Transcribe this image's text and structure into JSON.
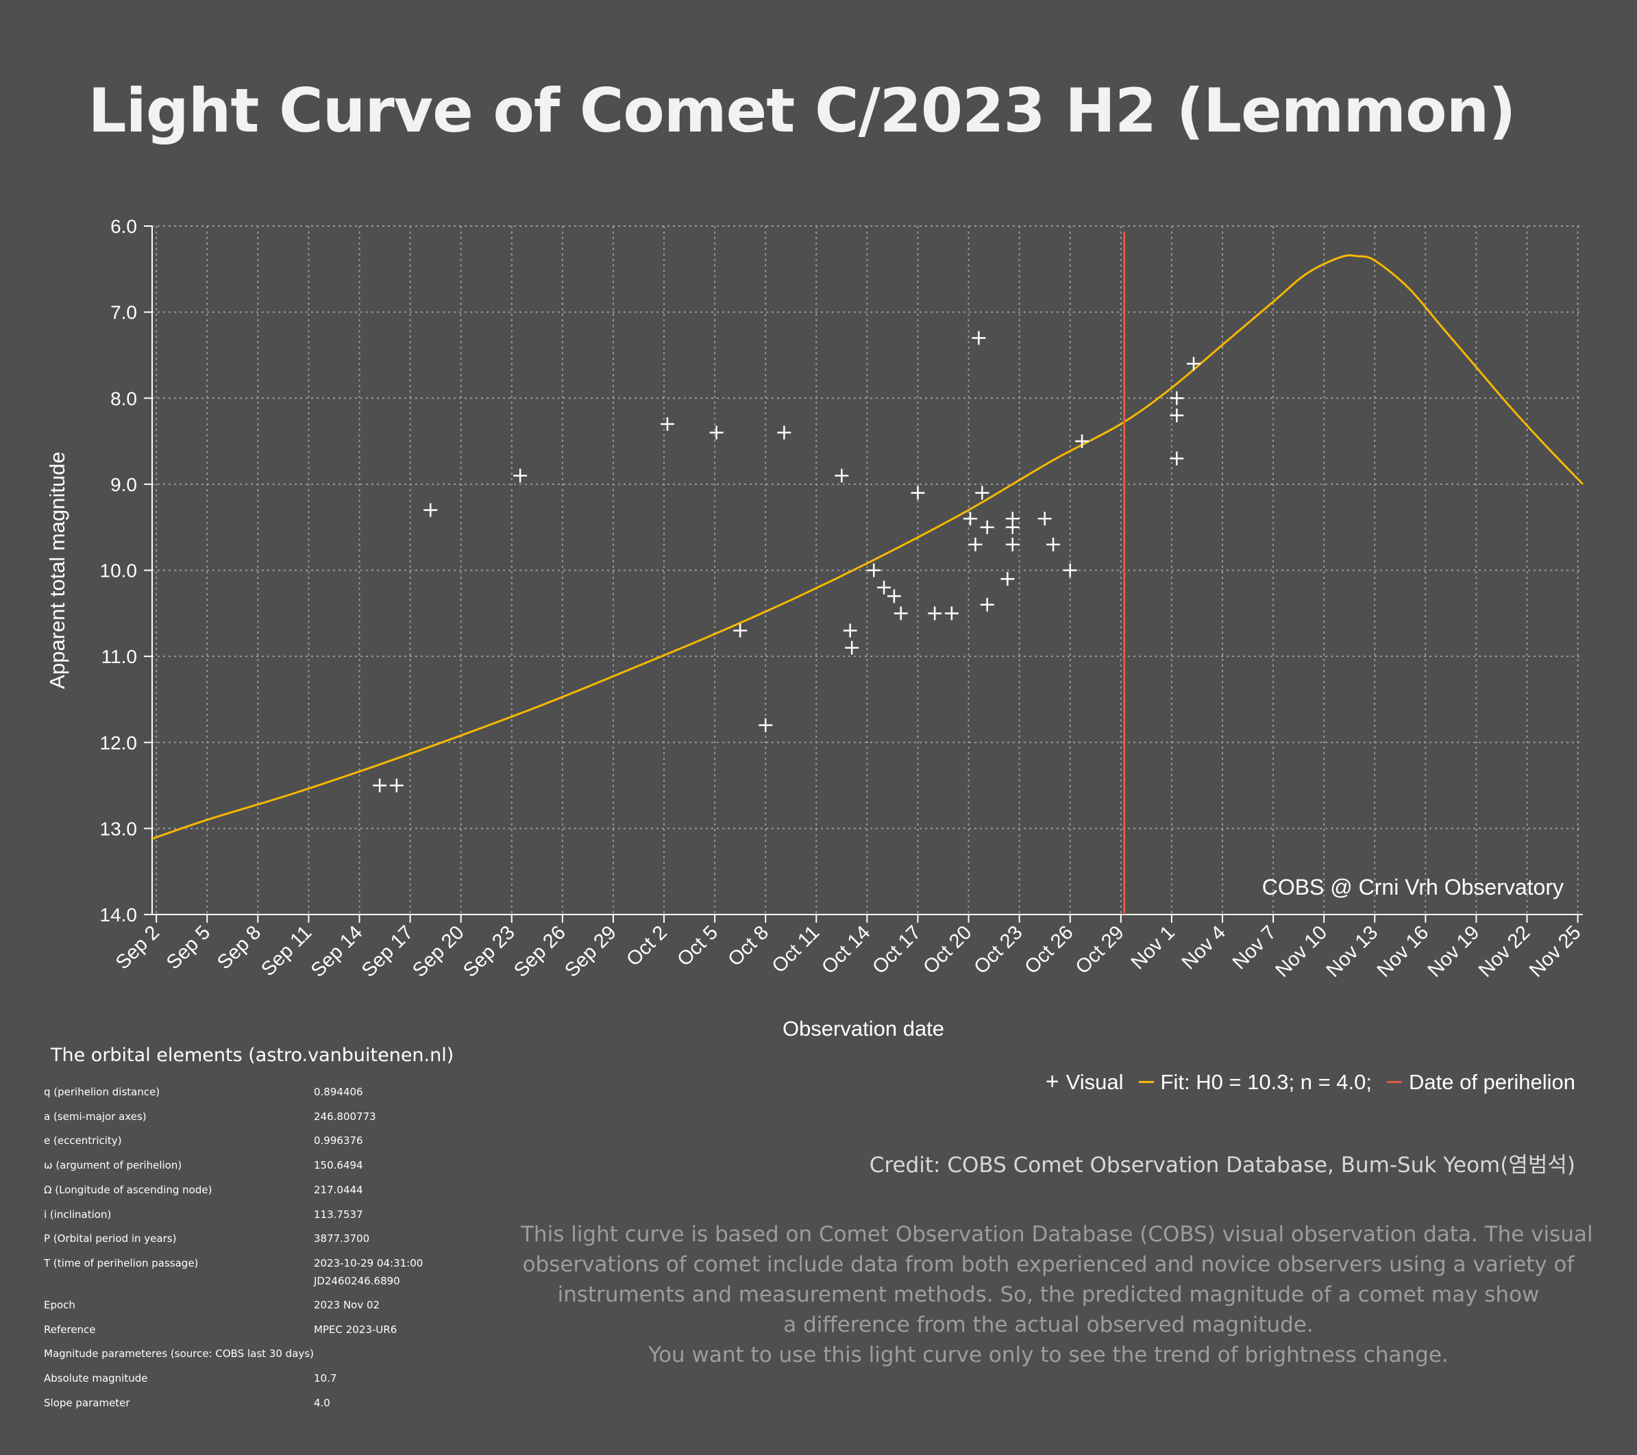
{
  "title": "Light Curve of Comet C/2023 H2 (Lemmon)",
  "colors": {
    "background": "#4f4f4f",
    "fit_curve": "#f5b800",
    "perihelion_line": "#e25a3c",
    "points": "#ffffff",
    "grid": "#9a9a9a"
  },
  "chart_data": {
    "type": "scatter",
    "title": "Light Curve of Comet C/2023 H2 (Lemmon)",
    "xlabel": "Observation date",
    "ylabel": "Apparent total magnitude",
    "x_unit": "days since Sep 1, 2023",
    "xlim": [
      1.75,
      86.3
    ],
    "ylim": [
      6.0,
      14.0
    ],
    "y_inverted": true,
    "y_ticks": [
      "6.0",
      "7.0",
      "8.0",
      "9.0",
      "10.0",
      "11.0",
      "12.0",
      "13.0",
      "14.0"
    ],
    "x_ticks": [
      {
        "label": "Sep 2",
        "day": 2
      },
      {
        "label": "Sep 5",
        "day": 5
      },
      {
        "label": "Sep 8",
        "day": 8
      },
      {
        "label": "Sep 11",
        "day": 11
      },
      {
        "label": "Sep 14",
        "day": 14
      },
      {
        "label": "Sep 17",
        "day": 17
      },
      {
        "label": "Sep 20",
        "day": 20
      },
      {
        "label": "Sep 23",
        "day": 23
      },
      {
        "label": "Sep 26",
        "day": 26
      },
      {
        "label": "Sep 29",
        "day": 29
      },
      {
        "label": "Oct 2",
        "day": 32
      },
      {
        "label": "Oct 5",
        "day": 35
      },
      {
        "label": "Oct 8",
        "day": 38
      },
      {
        "label": "Oct 11",
        "day": 41
      },
      {
        "label": "Oct 14",
        "day": 44
      },
      {
        "label": "Oct 17",
        "day": 47
      },
      {
        "label": "Oct 20",
        "day": 50
      },
      {
        "label": "Oct 23",
        "day": 53
      },
      {
        "label": "Oct 26",
        "day": 56
      },
      {
        "label": "Oct 29",
        "day": 59
      },
      {
        "label": "Nov 1",
        "day": 62
      },
      {
        "label": "Nov 4",
        "day": 65
      },
      {
        "label": "Nov 7",
        "day": 68
      },
      {
        "label": "Nov 10",
        "day": 71
      },
      {
        "label": "Nov 13",
        "day": 74
      },
      {
        "label": "Nov 16",
        "day": 77
      },
      {
        "label": "Nov 19",
        "day": 80
      },
      {
        "label": "Nov 22",
        "day": 83
      },
      {
        "label": "Nov 25",
        "day": 86
      }
    ],
    "grid": true,
    "series": [
      {
        "name": "Visual",
        "kind": "scatter",
        "points": [
          {
            "x": 15.2,
            "y": 12.5
          },
          {
            "x": 16.2,
            "y": 12.5
          },
          {
            "x": 18.2,
            "y": 9.3
          },
          {
            "x": 23.5,
            "y": 8.9
          },
          {
            "x": 32.2,
            "y": 8.3
          },
          {
            "x": 35.1,
            "y": 8.4
          },
          {
            "x": 36.5,
            "y": 10.7
          },
          {
            "x": 38.0,
            "y": 11.8
          },
          {
            "x": 39.1,
            "y": 8.4
          },
          {
            "x": 42.5,
            "y": 8.9
          },
          {
            "x": 43.0,
            "y": 10.7
          },
          {
            "x": 43.1,
            "y": 10.9
          },
          {
            "x": 44.4,
            "y": 10.0
          },
          {
            "x": 45.0,
            "y": 10.2
          },
          {
            "x": 45.6,
            "y": 10.3
          },
          {
            "x": 46.0,
            "y": 10.5
          },
          {
            "x": 47.0,
            "y": 9.1
          },
          {
            "x": 48.0,
            "y": 10.5
          },
          {
            "x": 49.0,
            "y": 10.5
          },
          {
            "x": 50.1,
            "y": 9.4
          },
          {
            "x": 50.4,
            "y": 9.7
          },
          {
            "x": 50.6,
            "y": 7.3
          },
          {
            "x": 50.8,
            "y": 9.1
          },
          {
            "x": 51.1,
            "y": 9.5
          },
          {
            "x": 51.1,
            "y": 10.4
          },
          {
            "x": 52.3,
            "y": 10.1
          },
          {
            "x": 52.6,
            "y": 9.4
          },
          {
            "x": 52.6,
            "y": 9.5
          },
          {
            "x": 52.6,
            "y": 9.7
          },
          {
            "x": 54.5,
            "y": 9.4
          },
          {
            "x": 55.0,
            "y": 9.7
          },
          {
            "x": 56.0,
            "y": 10.0
          },
          {
            "x": 56.7,
            "y": 8.5
          },
          {
            "x": 62.3,
            "y": 8.0
          },
          {
            "x": 62.3,
            "y": 8.2
          },
          {
            "x": 62.3,
            "y": 8.7
          },
          {
            "x": 63.3,
            "y": 7.6
          }
        ]
      },
      {
        "name": "Fit: H0 = 10.3; n = 4.0;",
        "kind": "line",
        "points": [
          {
            "x": 1.75,
            "y": 13.12
          },
          {
            "x": 5,
            "y": 12.9
          },
          {
            "x": 10,
            "y": 12.6
          },
          {
            "x": 15,
            "y": 12.27
          },
          {
            "x": 20,
            "y": 11.92
          },
          {
            "x": 25,
            "y": 11.55
          },
          {
            "x": 30,
            "y": 11.15
          },
          {
            "x": 35,
            "y": 10.74
          },
          {
            "x": 40,
            "y": 10.3
          },
          {
            "x": 45,
            "y": 9.82
          },
          {
            "x": 50,
            "y": 9.3
          },
          {
            "x": 55,
            "y": 8.72
          },
          {
            "x": 59,
            "y": 8.3
          },
          {
            "x": 62,
            "y": 7.88
          },
          {
            "x": 65,
            "y": 7.38
          },
          {
            "x": 68,
            "y": 6.88
          },
          {
            "x": 70,
            "y": 6.55
          },
          {
            "x": 72,
            "y": 6.36
          },
          {
            "x": 73,
            "y": 6.35
          },
          {
            "x": 74,
            "y": 6.4
          },
          {
            "x": 76,
            "y": 6.72
          },
          {
            "x": 78,
            "y": 7.18
          },
          {
            "x": 80,
            "y": 7.64
          },
          {
            "x": 82,
            "y": 8.1
          },
          {
            "x": 84,
            "y": 8.53
          },
          {
            "x": 86.3,
            "y": 9.0
          }
        ]
      }
    ],
    "vertical_lines": [
      {
        "name": "Date of perihelion",
        "x": 59.2
      }
    ],
    "annotation": "COBS @ Crni Vrh Observatory",
    "legend": {
      "placement": "bottom-right",
      "entries": [
        {
          "symbol": "+",
          "label": "Visual"
        },
        {
          "symbol": "line",
          "label": "Fit: H0 = 10.3; n = 4.0;"
        },
        {
          "symbol": "line",
          "label": "Date of perihelion"
        }
      ]
    }
  },
  "orbital": {
    "title": "The orbital elements (astro.vanbuitenen.nl)",
    "rows": [
      {
        "label": "q (perihelion distance)",
        "value": "0.894406"
      },
      {
        "label": "a (semi-major axes)",
        "value": "246.800773"
      },
      {
        "label": "e (eccentricity)",
        "value": "0.996376"
      },
      {
        "label": "ω (argument of perihelion)",
        "value": "150.6494"
      },
      {
        "label": "Ω (Longitude of ascending node)",
        "value": "217.0444"
      },
      {
        "label": "i (inclination)",
        "value": "113.7537"
      },
      {
        "label": "P (Orbital period in years)",
        "value": "3877.3700"
      },
      {
        "label": "T (time of perihelion passage)",
        "value": "2023-10-29 04:31:00",
        "value2": "JD2460246.6890"
      },
      {
        "label": "Epoch",
        "value": "2023 Nov 02"
      },
      {
        "label": "Reference",
        "value": "MPEC 2023-UR6"
      },
      {
        "label": "Magnitude parameteres (source: COBS last 30 days)",
        "value": ""
      },
      {
        "label": "Absolute magnitude",
        "value": "10.7"
      },
      {
        "label": "Slope parameter",
        "value": "4.0"
      }
    ]
  },
  "credit": "Credit: COBS Comet Observation Database, Bum-Suk Yeom(염범석)",
  "disclaimer": [
    "This light curve is based on Comet Observation Database (COBS) visual observation data. The visual",
    "observations of comet include data from both experienced and novice observers using a variety of",
    "instruments and measurement methods. So, the predicted magnitude of a comet may show",
    "a difference from the actual observed magnitude.",
    "You want to use this light curve only to see the trend of brightness change."
  ]
}
